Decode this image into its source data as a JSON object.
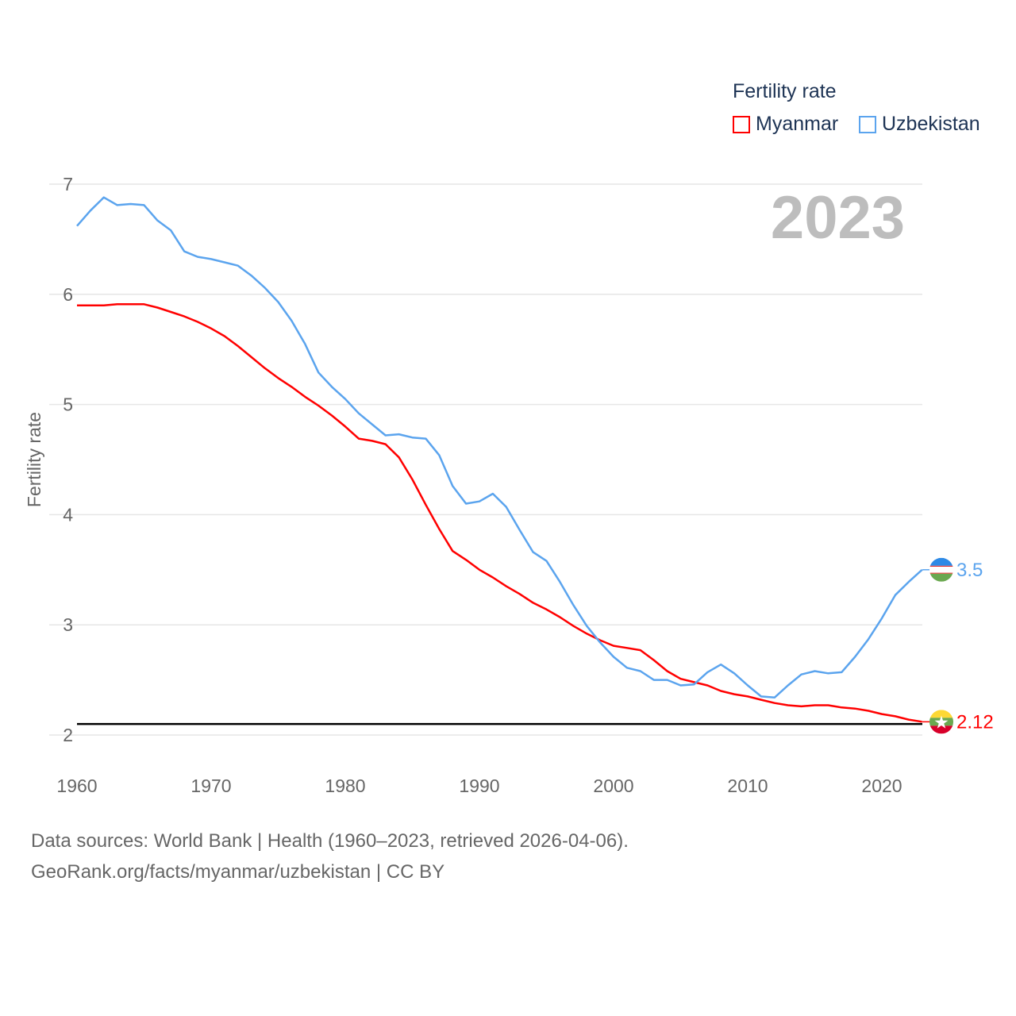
{
  "chart_data": {
    "type": "line",
    "title": "",
    "xlabel": "",
    "ylabel": "Fertility rate",
    "year_overlay": "2023",
    "xlim": [
      1960,
      2023
    ],
    "ylim": [
      2,
      7
    ],
    "x_ticks": [
      "1960",
      "1970",
      "1980",
      "1990",
      "2000",
      "2010",
      "2020"
    ],
    "y_ticks": [
      "2",
      "3",
      "4",
      "5",
      "6",
      "7"
    ],
    "grid": true,
    "legend": {
      "title": "Fertility rate",
      "position": "top-right"
    },
    "reference_line": {
      "value": 2.1,
      "color": "#000000"
    },
    "x": [
      1960,
      1961,
      1962,
      1963,
      1964,
      1965,
      1966,
      1967,
      1968,
      1969,
      1970,
      1971,
      1972,
      1973,
      1974,
      1975,
      1976,
      1977,
      1978,
      1979,
      1980,
      1981,
      1982,
      1983,
      1984,
      1985,
      1986,
      1987,
      1988,
      1989,
      1990,
      1991,
      1992,
      1993,
      1994,
      1995,
      1996,
      1997,
      1998,
      1999,
      2000,
      2001,
      2002,
      2003,
      2004,
      2005,
      2006,
      2007,
      2008,
      2009,
      2010,
      2011,
      2012,
      2013,
      2014,
      2015,
      2016,
      2017,
      2018,
      2019,
      2020,
      2021,
      2022,
      2023
    ],
    "series": [
      {
        "name": "Myanmar",
        "color": "#ff0000",
        "end_label": "2.12",
        "values": [
          5.9,
          5.9,
          5.9,
          5.91,
          5.91,
          5.91,
          5.88,
          5.84,
          5.8,
          5.75,
          5.69,
          5.62,
          5.53,
          5.43,
          5.33,
          5.24,
          5.16,
          5.07,
          4.99,
          4.9,
          4.8,
          4.69,
          4.67,
          4.64,
          4.52,
          4.32,
          4.09,
          3.87,
          3.67,
          3.59,
          3.5,
          3.43,
          3.35,
          3.28,
          3.2,
          3.14,
          3.07,
          2.99,
          2.92,
          2.86,
          2.81,
          2.79,
          2.77,
          2.68,
          2.58,
          2.51,
          2.48,
          2.45,
          2.4,
          2.37,
          2.35,
          2.32,
          2.29,
          2.27,
          2.26,
          2.27,
          2.27,
          2.25,
          2.24,
          2.22,
          2.19,
          2.17,
          2.14,
          2.12
        ]
      },
      {
        "name": "Uzbekistan",
        "color": "#5ba4ee",
        "end_label": "3.5",
        "values": [
          6.62,
          6.76,
          6.88,
          6.81,
          6.82,
          6.81,
          6.67,
          6.58,
          6.39,
          6.34,
          6.32,
          6.29,
          6.26,
          6.17,
          6.06,
          5.93,
          5.76,
          5.55,
          5.29,
          5.16,
          5.05,
          4.92,
          4.82,
          4.72,
          4.73,
          4.7,
          4.69,
          4.54,
          4.26,
          4.1,
          4.12,
          4.19,
          4.07,
          3.86,
          3.66,
          3.58,
          3.39,
          3.18,
          2.99,
          2.84,
          2.71,
          2.61,
          2.58,
          2.5,
          2.5,
          2.45,
          2.46,
          2.57,
          2.64,
          2.56,
          2.45,
          2.35,
          2.34,
          2.45,
          2.55,
          2.58,
          2.56,
          2.57,
          2.71,
          2.87,
          3.06,
          3.27,
          3.39,
          3.5
        ]
      }
    ]
  },
  "footer": {
    "line1": "Data sources: World Bank | Health (1960–2023, retrieved 2026-04-06).",
    "line2": "GeoRank.org/facts/myanmar/uzbekistan | CC BY"
  }
}
